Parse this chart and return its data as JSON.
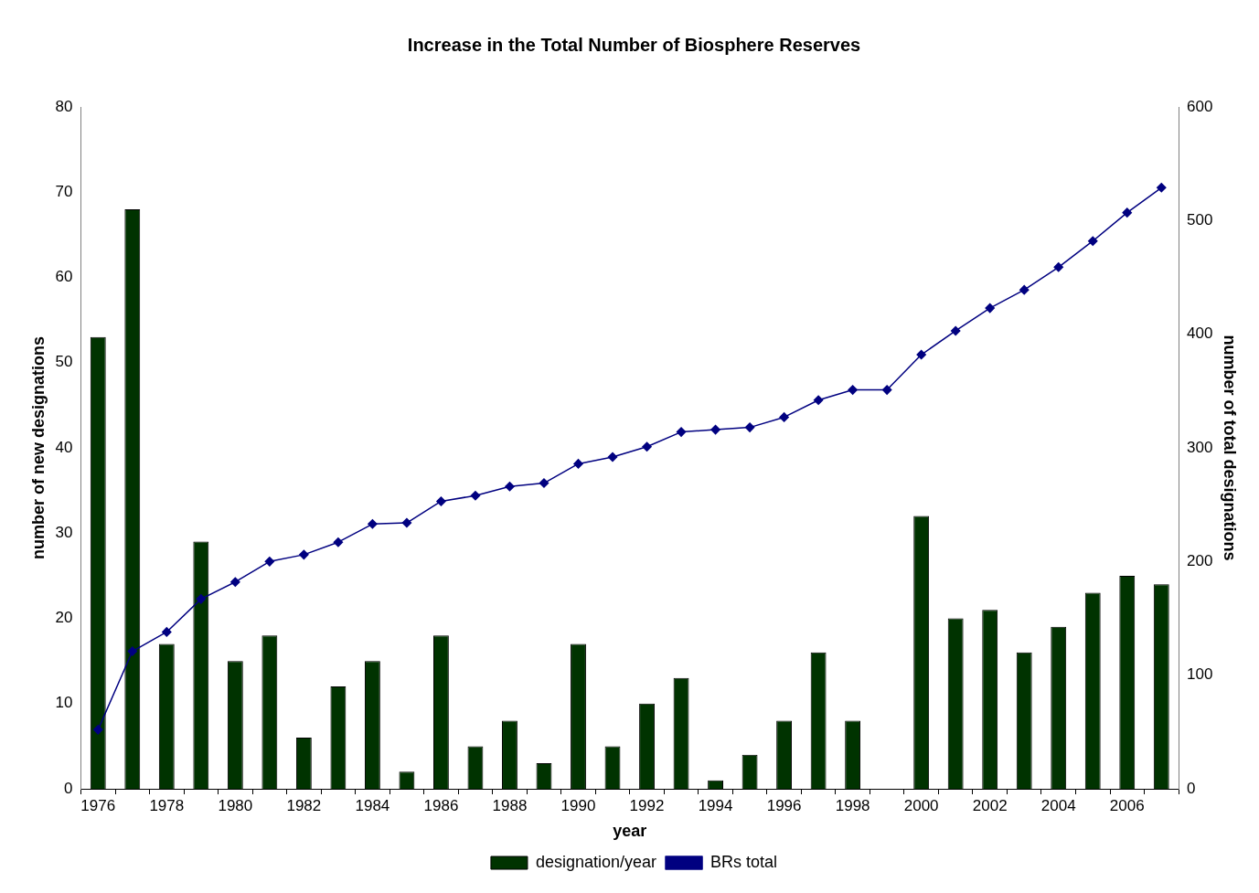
{
  "chart_data": {
    "type": "bar",
    "title": "Increase in the Total Number of Biosphere Reserves",
    "xlabel": "year",
    "ylabel": "number of new designations",
    "y2label": "number of total designations",
    "categories": [
      "1976",
      null,
      "1978",
      null,
      "1980",
      null,
      "1982",
      null,
      "1984",
      null,
      "1986",
      null,
      "1988",
      null,
      "1990",
      null,
      "1992",
      null,
      "1994",
      null,
      "1996",
      null,
      "1998",
      null,
      "2000",
      null,
      "2002",
      null,
      "2004",
      null,
      "2006",
      null
    ],
    "series": [
      {
        "name": "designation/year",
        "color": "#003300",
        "values": [
          53,
          68,
          17,
          29,
          15,
          18,
          6,
          12,
          15,
          2,
          18,
          5,
          8,
          3,
          17,
          5,
          10,
          13,
          1,
          4,
          8,
          16,
          8,
          0,
          32,
          20,
          21,
          16,
          19,
          23,
          25,
          24
        ]
      },
      {
        "name": "BRs total",
        "type": "line",
        "axis": "y2",
        "color": "#000080",
        "values": [
          52,
          121,
          138,
          167,
          182,
          200,
          206,
          217,
          233,
          234,
          253,
          258,
          266,
          269,
          286,
          292,
          301,
          314,
          316,
          318,
          327,
          342,
          351,
          351,
          382,
          403,
          423,
          439,
          459,
          482,
          507,
          529
        ]
      }
    ],
    "ylim": [
      0,
      80
    ],
    "yticks": [
      0,
      10,
      20,
      30,
      40,
      50,
      60,
      70,
      80
    ],
    "y2lim": [
      0,
      600
    ],
    "y2ticks": [
      0,
      100,
      200,
      300,
      400,
      500,
      600
    ],
    "marker": "diamond",
    "legend": "bottom"
  }
}
